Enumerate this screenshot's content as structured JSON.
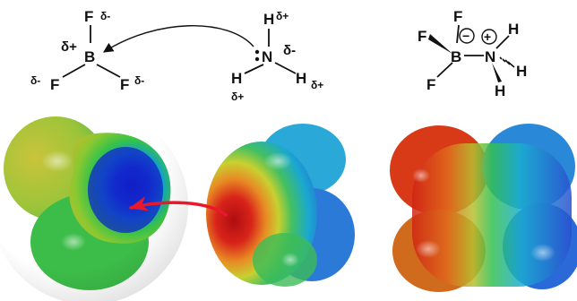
{
  "bf3": {
    "boron": "B",
    "fluorine": "F",
    "partial_positive": "δ+",
    "partial_negative": "δ-"
  },
  "nh3": {
    "nitrogen": "N",
    "hydrogen": "H",
    "partial_positive": "δ+",
    "partial_negative": "δ-"
  },
  "adduct": {
    "boron": "B",
    "nitrogen": "N",
    "fluorine": "F",
    "hydrogen": "H",
    "negative_charge": "−",
    "positive_charge": "+"
  },
  "colors": {
    "red_arrow": "#e8192c",
    "electron_rich": "#c8141e",
    "electron_poor": "#1028c8",
    "neutral": "#2ecc40"
  },
  "icons": {
    "lone_pair": "lone-pair-dots-icon",
    "curved_arrow": "curved-arrow-icon",
    "charge_circle": "circled-charge-icon"
  }
}
